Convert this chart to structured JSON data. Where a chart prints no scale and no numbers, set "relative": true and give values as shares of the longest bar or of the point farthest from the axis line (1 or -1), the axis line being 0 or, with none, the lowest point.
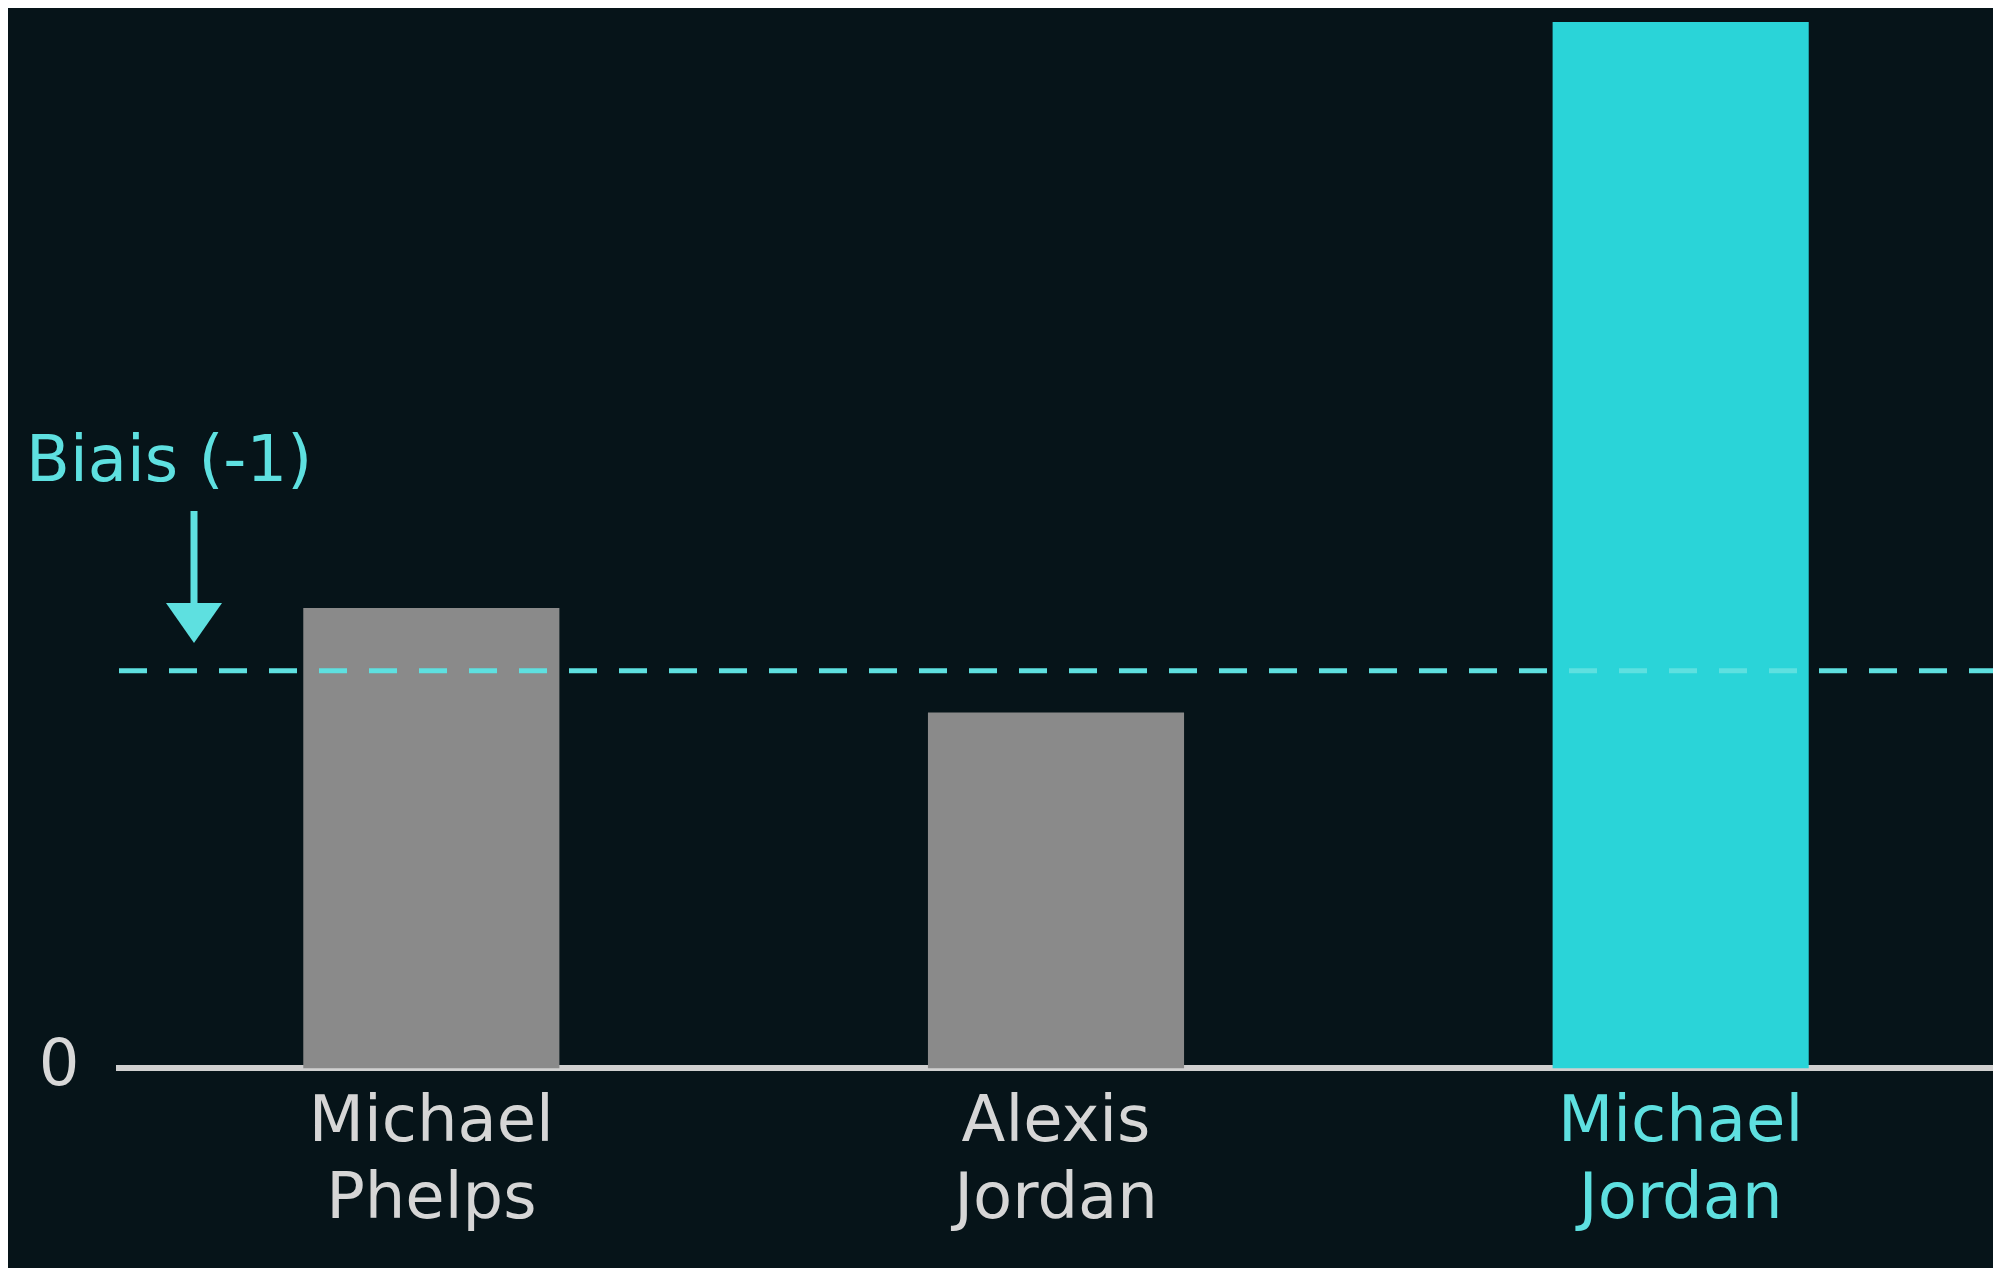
{
  "chart_data": {
    "type": "bar",
    "relative": true,
    "categories": [
      "Michael Phelps",
      "Alexis Jordan",
      "Michael Jordan"
    ],
    "values": [
      0.44,
      0.34,
      1
    ],
    "colors": [
      "#8a8a8a",
      "#8a8a8a",
      "#2ad4d8"
    ],
    "ref_lines": [
      {
        "axis": "y",
        "value": 0.38,
        "label": "Biais (-1)",
        "color": "#5ee0e0",
        "line_style": "dashed"
      }
    ],
    "annotations": [
      "0"
    ],
    "legend": false
  }
}
